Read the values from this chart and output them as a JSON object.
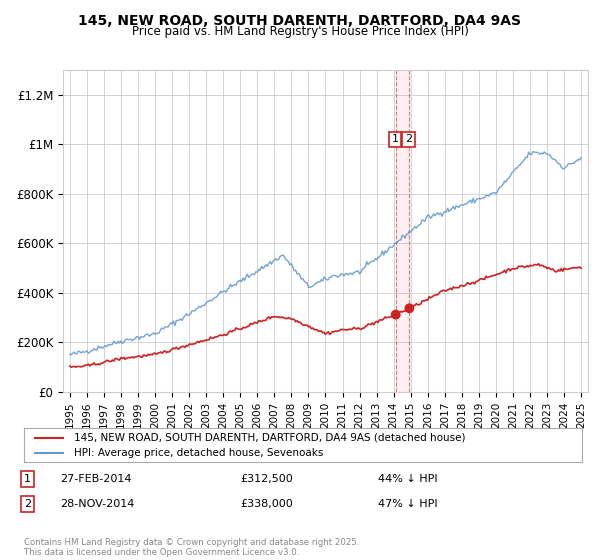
{
  "title": "145, NEW ROAD, SOUTH DARENTH, DARTFORD, DA4 9AS",
  "subtitle": "Price paid vs. HM Land Registry's House Price Index (HPI)",
  "legend_label_red": "145, NEW ROAD, SOUTH DARENTH, DARTFORD, DA4 9AS (detached house)",
  "legend_label_blue": "HPI: Average price, detached house, Sevenoaks",
  "footer": "Contains HM Land Registry data © Crown copyright and database right 2025.\nThis data is licensed under the Open Government Licence v3.0.",
  "annotation1_label": "1",
  "annotation1_date": "27-FEB-2014",
  "annotation1_price": "£312,500",
  "annotation1_hpi": "44% ↓ HPI",
  "annotation2_label": "2",
  "annotation2_date": "28-NOV-2014",
  "annotation2_price": "£338,000",
  "annotation2_hpi": "47% ↓ HPI",
  "vline_x1": 2014.12,
  "vline_x2": 2014.92,
  "vline_color": "#dd4444",
  "red_color": "#cc2222",
  "blue_color": "#6699cc",
  "dot_color": "#cc2222",
  "sale1_x": 2014.12,
  "sale1_y": 312500,
  "sale2_x": 2014.92,
  "sale2_y": 338000,
  "ylim": [
    0,
    1300000
  ],
  "xlim": [
    1994.6,
    2025.4
  ],
  "yticks": [
    0,
    200000,
    400000,
    600000,
    800000,
    1000000,
    1200000
  ],
  "ytick_labels": [
    "£0",
    "£200K",
    "£400K",
    "£600K",
    "£800K",
    "£1M",
    "£1.2M"
  ],
  "background_color": "#ffffff",
  "grid_color": "#cccccc"
}
